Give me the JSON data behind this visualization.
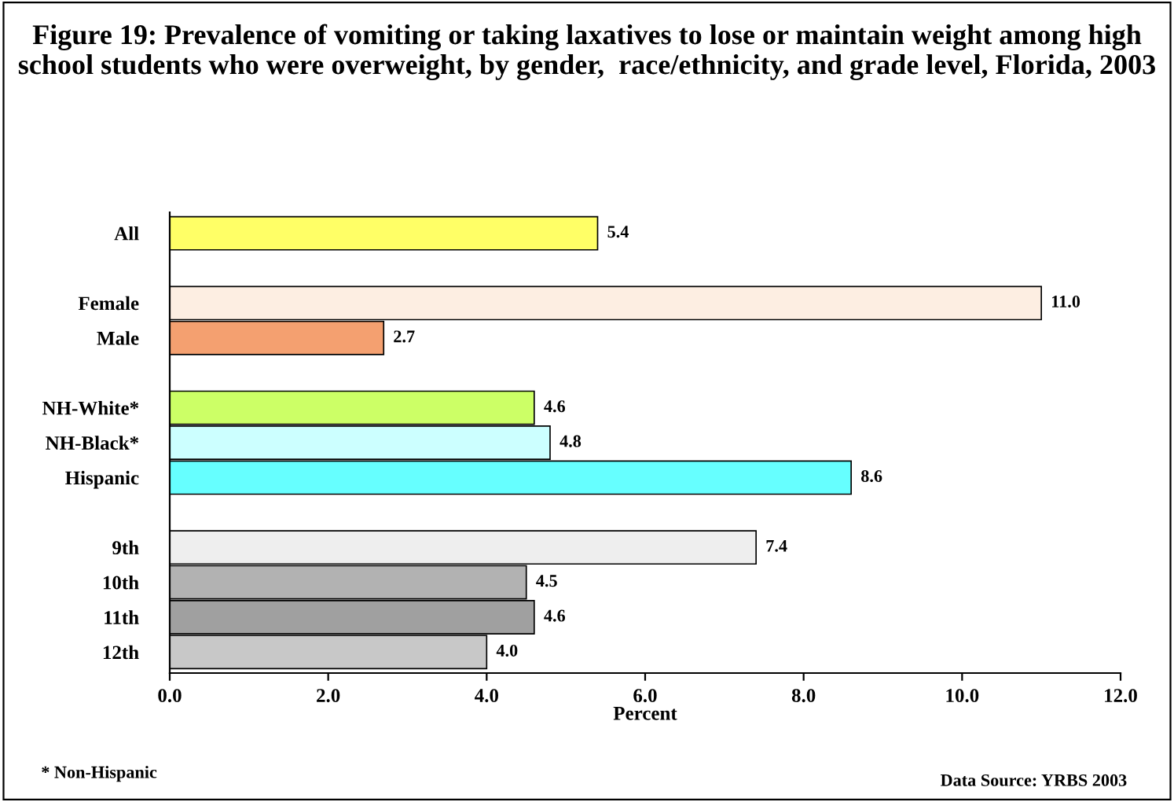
{
  "chart_data": {
    "type": "bar",
    "orientation": "horizontal",
    "title": "Figure 19: Prevalence of vomiting or taking laxatives to lose or maintain weight among high school students who were overweight, by gender,  race/ethnicity, and grade level, Florida, 2003",
    "categories": [
      "All",
      null,
      "Female",
      "Male",
      null,
      "NH-White*",
      "NH-Black*",
      "Hispanic",
      null,
      "9th",
      "10th",
      "11th",
      "12th"
    ],
    "values": [
      5.4,
      null,
      11.0,
      2.7,
      null,
      4.6,
      4.8,
      8.6,
      null,
      7.4,
      4.5,
      4.6,
      4.0
    ],
    "value_labels": [
      "5.4",
      null,
      "11.0",
      "2.7",
      null,
      "4.6",
      "4.8",
      "8.6",
      null,
      "7.4",
      "4.5",
      "4.6",
      "4.0"
    ],
    "colors": [
      "#ffff66",
      null,
      "#fdeee2",
      "#f4a070",
      null,
      "#ccff66",
      "#ccffff",
      "#66ffff",
      null,
      "#eeeeee",
      "#b2b2b2",
      "#a0a0a0",
      "#c8c8c8"
    ],
    "xlabel": "Percent",
    "xlim": [
      0,
      12
    ],
    "xticks": [
      {
        "value": 0,
        "label": "0.0"
      },
      {
        "value": 2,
        "label": "2.0"
      },
      {
        "value": 4,
        "label": "4.0"
      },
      {
        "value": 6,
        "label": "6.0"
      },
      {
        "value": 8,
        "label": "8.0"
      },
      {
        "value": 10,
        "label": "10.0"
      },
      {
        "value": 12,
        "label": "12.0"
      }
    ],
    "grid": false,
    "legend": false,
    "annotations": [
      "* Non-Hispanic",
      "Data Source: YRBS 2003"
    ]
  }
}
